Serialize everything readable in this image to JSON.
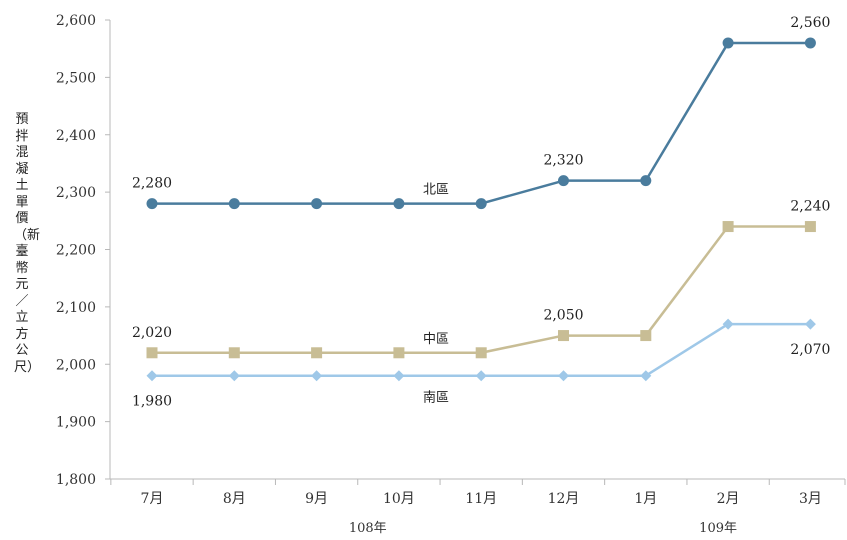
{
  "chart_data": {
    "type": "line",
    "title": "",
    "xlabel": "",
    "ylabel": "預拌混凝土單價（新臺幣元／立方公尺）",
    "categories": [
      "7月",
      "8月",
      "9月",
      "10月",
      "11月",
      "12月",
      "1月",
      "2月",
      "3月"
    ],
    "year_groups": [
      {
        "label": "108年",
        "from": 0,
        "to": 5
      },
      {
        "label": "109年",
        "from": 6,
        "to": 8
      }
    ],
    "ylim": [
      1800,
      2600
    ],
    "yticks": [
      1800,
      1900,
      2000,
      2100,
      2200,
      2300,
      2400,
      2500,
      2600
    ],
    "ytick_labels": [
      "1,800",
      "1,900",
      "2,000",
      "2,100",
      "2,200",
      "2,300",
      "2,400",
      "2,500",
      "2,600"
    ],
    "grid": false,
    "series": [
      {
        "name": "北區",
        "color": "#4a7c9d",
        "marker": "circle",
        "values": [
          2280,
          2280,
          2280,
          2280,
          2280,
          2320,
          2320,
          2560,
          2560
        ],
        "annotations": [
          {
            "index": 0,
            "text": "2,280"
          },
          {
            "index": 5,
            "text": "2,320"
          },
          {
            "index": 8,
            "text": "2,560"
          }
        ]
      },
      {
        "name": "中區",
        "color": "#c8bd95",
        "marker": "square",
        "values": [
          2020,
          2020,
          2020,
          2020,
          2020,
          2050,
          2050,
          2240,
          2240
        ],
        "annotations": [
          {
            "index": 0,
            "text": "2,020"
          },
          {
            "index": 5,
            "text": "2,050"
          },
          {
            "index": 8,
            "text": "2,240"
          }
        ]
      },
      {
        "name": "南區",
        "color": "#9fc8e8",
        "marker": "diamond",
        "values": [
          1980,
          1980,
          1980,
          1980,
          1980,
          1980,
          1980,
          2070,
          2070
        ],
        "annotations": [
          {
            "index": 0,
            "text": "1,980"
          },
          {
            "index": 8,
            "text": "2,070"
          }
        ]
      }
    ]
  }
}
